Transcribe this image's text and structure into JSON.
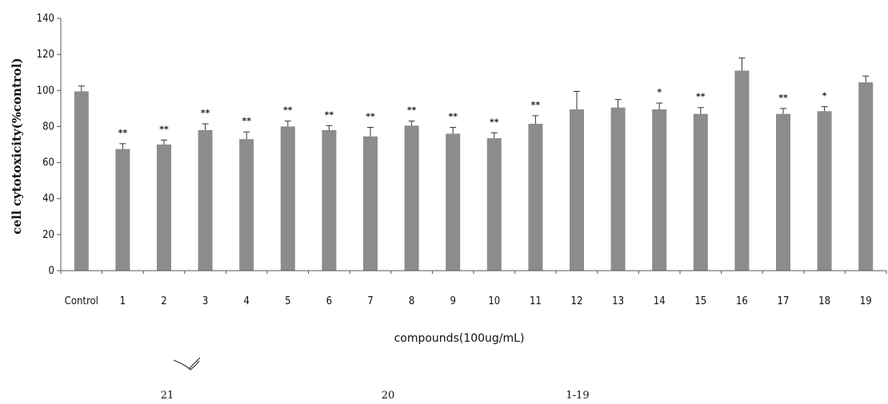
{
  "chart_data": {
    "type": "bar",
    "categories": [
      "Control",
      "1",
      "2",
      "3",
      "4",
      "5",
      "6",
      "7",
      "8",
      "9",
      "10",
      "11",
      "12",
      "13",
      "14",
      "15",
      "16",
      "17",
      "18",
      "19"
    ],
    "values": [
      99.5,
      67.5,
      70,
      78,
      73,
      80,
      78,
      74.5,
      80.5,
      76,
      73.5,
      81.5,
      89.5,
      90.5,
      89.5,
      87,
      111,
      87,
      88.5,
      104.5
    ],
    "errors": [
      3,
      3,
      2.5,
      3.5,
      4,
      3,
      2.5,
      5,
      2.5,
      3.5,
      3,
      4.5,
      10,
      4.5,
      3.5,
      3.5,
      7,
      3,
      2.5,
      3.5
    ],
    "significance": [
      "",
      "**",
      "**",
      "**",
      "**",
      "**",
      "**",
      "**",
      "**",
      "**",
      "**",
      "**",
      "",
      "",
      "*",
      "**",
      "",
      "**",
      "*",
      ""
    ],
    "xlabel": "compounds(100ug/mL)",
    "ylabel": "cell cytotoxicity(%control)",
    "ylim": [
      0,
      140
    ],
    "yticks": [
      0,
      20,
      40,
      60,
      80,
      100,
      120,
      140
    ],
    "grid": false,
    "bar_color": "#8c8c8c"
  },
  "footer": {
    "labels": [
      "21",
      "20",
      "1-19"
    ]
  }
}
